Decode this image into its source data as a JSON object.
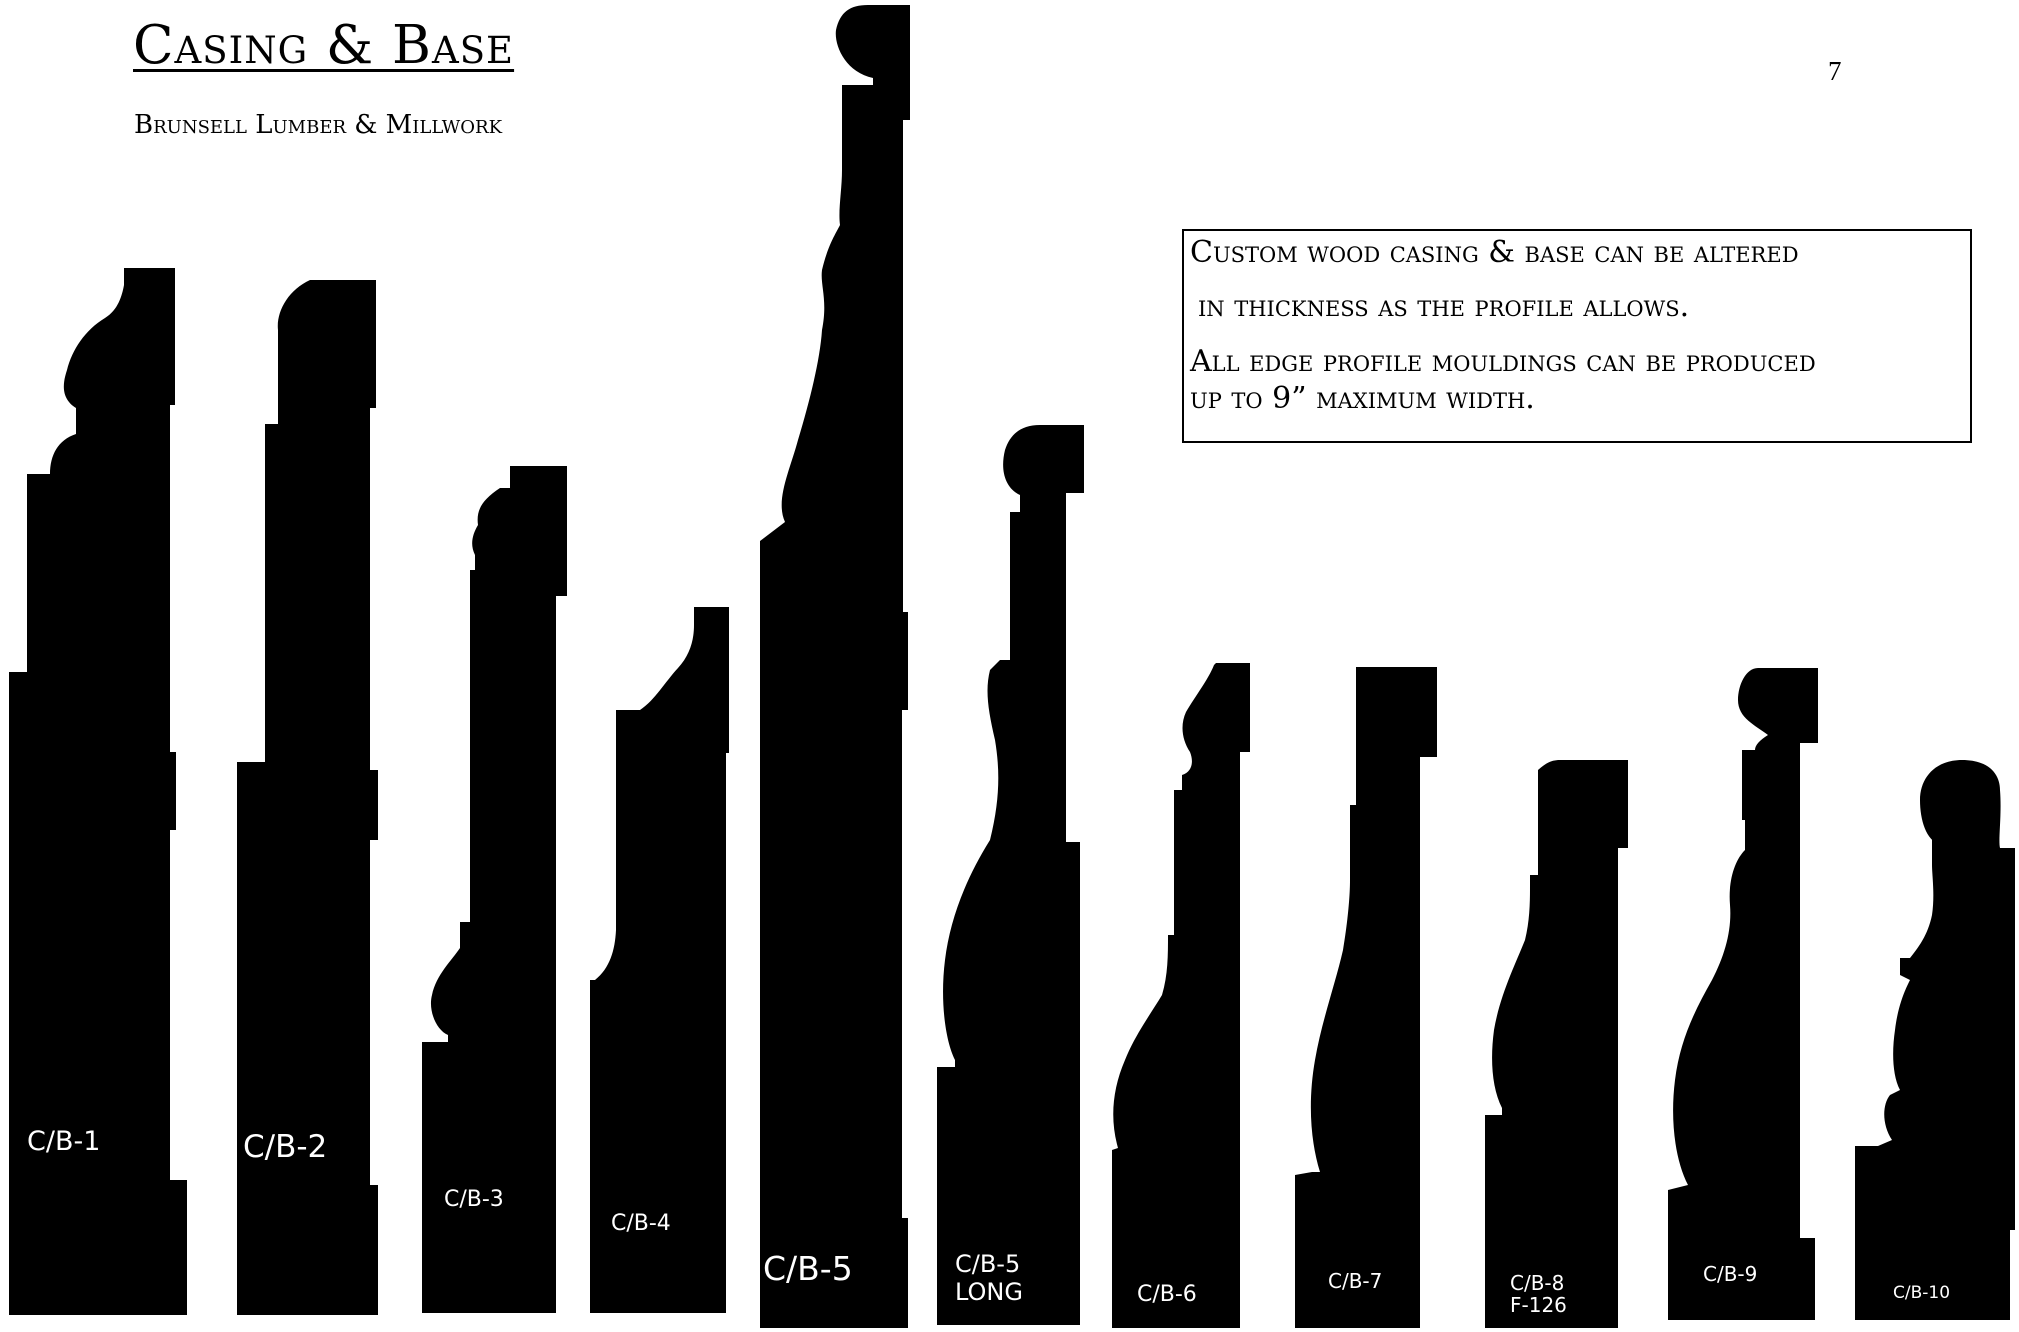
{
  "header": {
    "title": "Casing & Base",
    "subtitle": "Brunsell Lumber & Millwork",
    "page_number": "7"
  },
  "note": {
    "line1": "Custom wood casing & base can be altered",
    "line2": "in thickness  as the profile allows.",
    "line3": "All edge profile mouldings can be produced",
    "line4": "up to 9” maximum width."
  },
  "profiles": [
    {
      "label": "C/B-1"
    },
    {
      "label": "C/B-2"
    },
    {
      "label": "C/B-3"
    },
    {
      "label": "C/B-4"
    },
    {
      "label": "C/B-5"
    },
    {
      "label": "C/B-5",
      "label2": "LONG"
    },
    {
      "label": "C/B-6"
    },
    {
      "label": "C/B-7"
    },
    {
      "label": "C/B-8",
      "label2": "F-126"
    },
    {
      "label": "C/B-9"
    },
    {
      "label": "C/B-10"
    }
  ]
}
